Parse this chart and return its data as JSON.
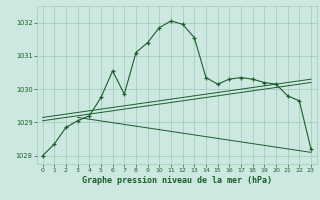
{
  "title": "Graphe pression niveau de la mer (hPa)",
  "x": [
    0,
    1,
    2,
    3,
    4,
    5,
    6,
    7,
    8,
    9,
    10,
    11,
    12,
    13,
    14,
    15,
    16,
    17,
    18,
    19,
    20,
    21,
    22,
    23
  ],
  "main_line": [
    1028.0,
    1028.35,
    1028.85,
    1029.05,
    1029.2,
    1029.75,
    1030.55,
    1029.85,
    1031.1,
    1031.4,
    1031.85,
    1032.05,
    1031.95,
    1031.55,
    1030.35,
    1030.15,
    1030.3,
    1030.35,
    1030.3,
    1030.2,
    1030.15,
    1029.8,
    1029.65,
    1028.2
  ],
  "trend_line1": [
    [
      0,
      23
    ],
    [
      1029.05,
      1030.2
    ]
  ],
  "trend_line2": [
    [
      0,
      23
    ],
    [
      1029.15,
      1030.3
    ]
  ],
  "trend_line3": [
    [
      3,
      23
    ],
    [
      1029.15,
      1028.1
    ]
  ],
  "bg_color": "#cde8e0",
  "grid_color": "#9ec8bc",
  "line_color": "#1a5e2a",
  "tick_label_color": "#1a5e2a",
  "title_color": "#1a5e2a",
  "ylim": [
    1027.75,
    1032.5
  ],
  "yticks": [
    1028,
    1029,
    1030,
    1031,
    1032
  ],
  "xlim": [
    -0.5,
    23.5
  ],
  "xticks": [
    0,
    1,
    2,
    3,
    4,
    5,
    6,
    7,
    8,
    9,
    10,
    11,
    12,
    13,
    14,
    15,
    16,
    17,
    18,
    19,
    20,
    21,
    22,
    23
  ]
}
